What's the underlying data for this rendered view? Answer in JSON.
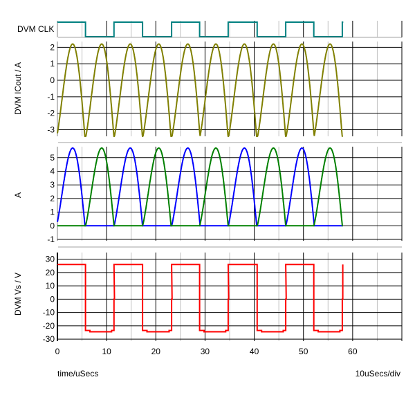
{
  "chart_data": {
    "type": "line",
    "x_axis": {
      "label": "time/uSecs",
      "scale_note": "10uSecs/div",
      "xlim": [
        0,
        70
      ],
      "ticks": [
        "0",
        "10",
        "20",
        "30",
        "40",
        "50",
        "60"
      ],
      "major_grid_step": 10,
      "minor_grid_step": 5
    },
    "grid": true,
    "panels": [
      {
        "id": "clk",
        "ylabel": "DVM CLK",
        "type": "digital",
        "series": [
          {
            "color": "#008080",
            "edges": [
              0,
              5.7,
              11.5,
              17.3,
              23.2,
              28.9,
              34.7,
              40.6,
              46.4,
              52.1,
              57.9,
              58.1
            ],
            "start_level": 1
          }
        ]
      },
      {
        "id": "icout",
        "ylabel": "DVM ICout / A",
        "ylim": [
          -3.4,
          2.35
        ],
        "ticks": [
          "2",
          "1",
          "0",
          "-1",
          "-2",
          "-3"
        ],
        "tick_values": [
          2,
          1,
          0,
          -1,
          -2,
          -3
        ],
        "series": [
          {
            "color": "#808000",
            "shape": "sum of both rectified half-sine pulse trains plus offset",
            "offset": -3.5
          }
        ]
      },
      {
        "id": "currents",
        "ylabel": "A",
        "ylim": [
          -1.1,
          5.8
        ],
        "ticks": [
          "5",
          "4",
          "3",
          "2",
          "1",
          "0",
          "-1"
        ],
        "tick_values": [
          5,
          4,
          3,
          2,
          1,
          0,
          -1
        ],
        "series": [
          {
            "color": "#0000ff",
            "shape": "half-sine pulses",
            "peak": 5.7,
            "peak_time_in_pulse": 3.3,
            "pulse_width": 5.8,
            "pulse_starts": [
              -0.2,
              11.5,
              23.2,
              34.7,
              46.4
            ],
            "end": 58
          },
          {
            "color": "#008000",
            "shape": "half-sine pulses",
            "peak": 5.7,
            "peak_time_in_pulse": 3.3,
            "pulse_width": 5.8,
            "pulse_starts": [
              5.7,
              17.3,
              28.9,
              40.6,
              52.1
            ],
            "end": 58
          }
        ]
      },
      {
        "id": "vs",
        "ylabel": "DVM Vs / V",
        "ylim": [
          -31.5,
          35
        ],
        "ticks": [
          "30",
          "20",
          "10",
          "0",
          "-10",
          "-20",
          "-30"
        ],
        "tick_values": [
          30,
          20,
          10,
          0,
          -10,
          -20,
          -30
        ],
        "series": [
          {
            "color": "#ff0000",
            "high": 26,
            "low": -24.5,
            "low_edge": -23.5,
            "edges": [
              0,
              5.7,
              11.5,
              17.3,
              23.2,
              28.9,
              34.7,
              40.6,
              46.4,
              52.1,
              57.9
            ]
          }
        ]
      }
    ]
  }
}
